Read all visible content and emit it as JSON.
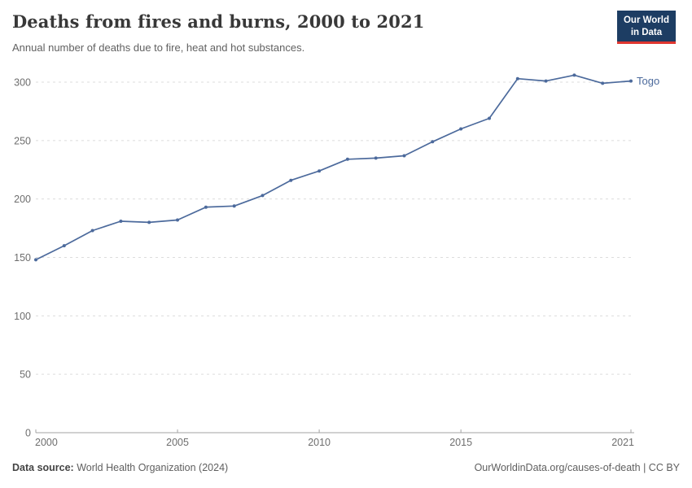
{
  "header": {
    "title": "Deaths from fires and burns, 2000 to 2021",
    "subtitle": "Annual number of deaths due to fire, heat and hot substances.",
    "logo": {
      "line1": "Our World",
      "line2": "in Data",
      "bg_color": "#1d3d63",
      "accent_color": "#e0362f"
    }
  },
  "chart_data": {
    "type": "line",
    "title": "Deaths from fires and burns, 2000 to 2021",
    "xlabel": "",
    "ylabel": "",
    "x": [
      2000,
      2001,
      2002,
      2003,
      2004,
      2005,
      2006,
      2007,
      2008,
      2009,
      2010,
      2011,
      2012,
      2013,
      2014,
      2015,
      2016,
      2017,
      2018,
      2019,
      2020,
      2021
    ],
    "series": [
      {
        "name": "Togo",
        "color": "#4c6a9c",
        "values": [
          148,
          160,
          173,
          181,
          180,
          182,
          193,
          194,
          203,
          216,
          224,
          234,
          235,
          237,
          249,
          260,
          269,
          303,
          301,
          306,
          299,
          301
        ]
      }
    ],
    "xticks": [
      2000,
      2005,
      2010,
      2015,
      2021
    ],
    "yticks": [
      0,
      50,
      100,
      150,
      200,
      250,
      300
    ],
    "xlim": [
      2000,
      2021
    ],
    "ylim": [
      0,
      300
    ],
    "grid": "horizontal-dashed",
    "legend_position": "end-of-line-label"
  },
  "footer": {
    "source_label": "Data source:",
    "source_value": "World Health Organization (2024)",
    "credit": "OurWorldinData.org/causes-of-death | CC BY"
  },
  "colors": {
    "line": "#4c6a9c",
    "grid": "#dcdcdc",
    "axis": "#a3a3a3",
    "tick_label": "#6e6e6e",
    "title": "#383838",
    "subtitle": "#616161",
    "footer": "#5f5f5f"
  }
}
